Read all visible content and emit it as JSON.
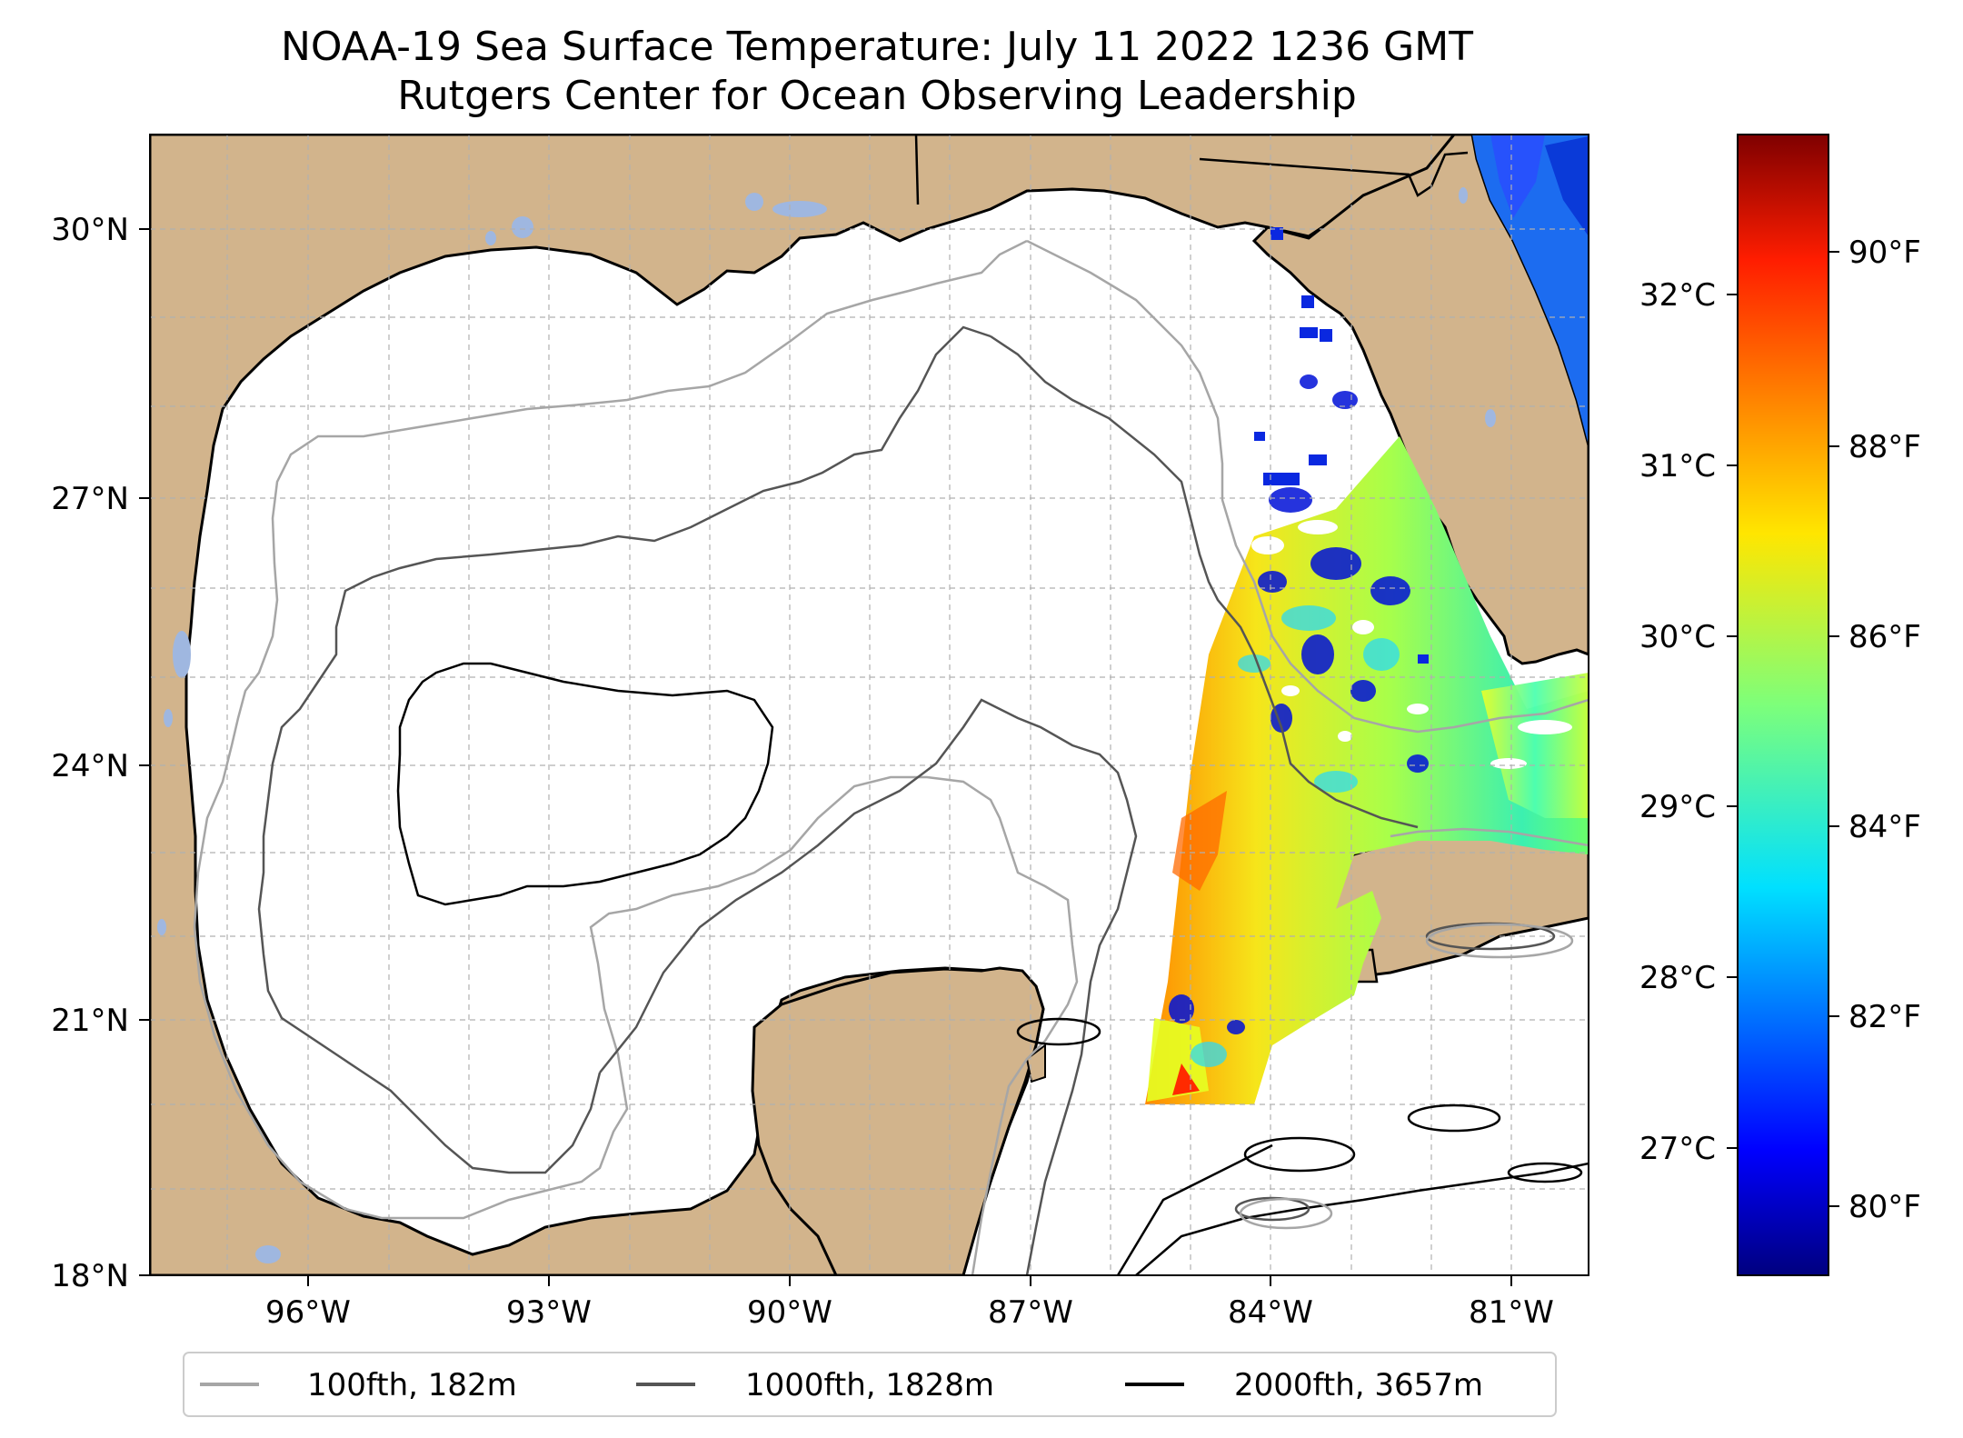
{
  "title_line1": "NOAA-19 Sea Surface Temperature: July 11 2022 1236 GMT",
  "title_line2": "Rutgers Center for Ocean Observing Leadership",
  "map": {
    "extent": {
      "lon_min": -98.3,
      "lon_max": -80.3,
      "lat_min": 18,
      "lat_max": 31
    },
    "lat_ticks": [
      {
        "value": 30,
        "label": "30°N"
      },
      {
        "value": 27,
        "label": "27°N"
      },
      {
        "value": 24,
        "label": "24°N"
      },
      {
        "value": 21,
        "label": "21°N"
      },
      {
        "value": 18,
        "label": "18°N"
      }
    ],
    "lon_ticks": [
      {
        "value": -96,
        "label": "96°W"
      },
      {
        "value": -93,
        "label": "93°W"
      },
      {
        "value": -90,
        "label": "90°W"
      },
      {
        "value": -87,
        "label": "87°W"
      },
      {
        "value": -84,
        "label": "84°W"
      },
      {
        "value": -81,
        "label": "81°W"
      }
    ],
    "gridlines": true,
    "colors": {
      "land": "#d2b48c",
      "ocean": "#ffffff",
      "lakes": "#9fb7e0"
    }
  },
  "colorbar": {
    "celsius_ticks": [
      {
        "value": 32,
        "label": "32°C"
      },
      {
        "value": 31,
        "label": "31°C"
      },
      {
        "value": 30,
        "label": "30°C"
      },
      {
        "value": 29,
        "label": "29°C"
      },
      {
        "value": 28,
        "label": "28°C"
      },
      {
        "value": 27,
        "label": "27°C"
      }
    ],
    "fahrenheit_ticks": [
      {
        "value": 90,
        "label": "90°F"
      },
      {
        "value": 88,
        "label": "88°F"
      },
      {
        "value": 86,
        "label": "86°F"
      },
      {
        "value": 84,
        "label": "84°F"
      },
      {
        "value": 82,
        "label": "82°F"
      },
      {
        "value": 80,
        "label": "80°F"
      }
    ],
    "range_f": [
      79.2,
      91.4
    ],
    "colormap": "jet"
  },
  "legend": {
    "placement": "bottom-center",
    "items": [
      {
        "label": "100fth, 182m",
        "color": "#a6a6a6"
      },
      {
        "label": "1000fth, 1828m",
        "color": "#555555"
      },
      {
        "label": "2000fth, 3657m",
        "color": "#000000"
      }
    ]
  }
}
